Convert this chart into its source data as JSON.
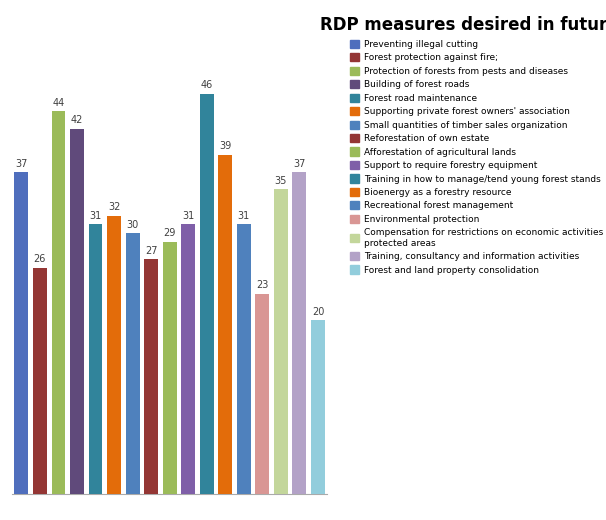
{
  "title": "RDP measures desired in future",
  "categories": [
    "Preventing illegal cutting",
    "Forest protection against fire;",
    "Protection of forests from pests and diseases",
    "Building of forest roads",
    "Forest road maintenance",
    "Supporting private forest owners' association",
    "Small quantities of timber sales organization",
    "Reforestation of own estate",
    "Afforestation of agricultural lands",
    "Support to require forestry equipment",
    "Training in how to manage/tend young forest stands",
    "Bioenergy as a forestry resource",
    "Recreational forest management",
    "Environmental protection",
    "Compensation for restrictions on economic activities on\nprotected areas",
    "Training, consultancy and information activities",
    "Forest and land property consolidation"
  ],
  "values": [
    37,
    26,
    44,
    42,
    31,
    32,
    30,
    27,
    29,
    31,
    46,
    39,
    31,
    23,
    35,
    37,
    20
  ],
  "colors": [
    "#4F6EBD",
    "#943634",
    "#9BBB59",
    "#604A7B",
    "#31849B",
    "#E36C0A",
    "#4F81BD",
    "#943634",
    "#9BBB59",
    "#7F5FA8",
    "#31849B",
    "#E36C0A",
    "#4F81BD",
    "#D99694",
    "#C3D69B",
    "#B3A2C7",
    "#92CDDC"
  ],
  "ylim": [
    0,
    52
  ],
  "title_fontsize": 12,
  "label_fontsize": 7,
  "legend_fontsize": 6.5
}
